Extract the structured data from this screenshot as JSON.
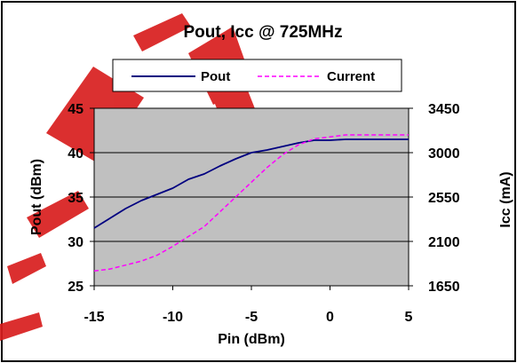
{
  "chart_data": {
    "type": "line",
    "title": "Pout, Icc @ 725MHz",
    "xlabel": "Pin (dBm)",
    "ylabel_left": "Pout (dBm)",
    "ylabel_right": "Icc (mA)",
    "xlim": [
      -15,
      5
    ],
    "ylim_left": [
      25,
      45
    ],
    "ylim_right": [
      1650,
      3450
    ],
    "x_ticks": [
      "-15",
      "-10",
      "-5",
      "0",
      "5"
    ],
    "y_left_ticks": [
      "25",
      "30",
      "35",
      "40",
      "45"
    ],
    "y_right_ticks": [
      "1650",
      "2100",
      "2550",
      "3000",
      "3450"
    ],
    "grid": true,
    "legend_position": "top",
    "plot_background": "#c0c0c0",
    "watermark_color": "#d81e1e",
    "series": [
      {
        "name": "Pout",
        "axis": "left",
        "color": "#000080",
        "style": "solid",
        "x": [
          -15,
          -14,
          -13,
          -12,
          -11,
          -10,
          -9,
          -8,
          -7,
          -6,
          -5,
          -4,
          -3,
          -2,
          -1,
          0,
          1,
          2,
          3,
          4,
          5
        ],
        "values": [
          31.5,
          32.6,
          33.7,
          34.6,
          35.3,
          36.0,
          37.0,
          37.6,
          38.5,
          39.3,
          40.0,
          40.3,
          40.7,
          41.1,
          41.4,
          41.4,
          41.5,
          41.5,
          41.5,
          41.5,
          41.5
        ]
      },
      {
        "name": "Current",
        "axis": "right",
        "color": "#ff00ff",
        "style": "dashed",
        "x": [
          -15,
          -14,
          -13,
          -12,
          -11,
          -10,
          -9,
          -8,
          -7,
          -6,
          -5,
          -4,
          -3,
          -2,
          -1,
          0,
          1,
          2,
          3,
          4,
          5
        ],
        "values": [
          1800,
          1820,
          1860,
          1900,
          1960,
          2050,
          2150,
          2250,
          2400,
          2550,
          2700,
          2850,
          2980,
          3080,
          3140,
          3160,
          3180,
          3180,
          3180,
          3180,
          3180
        ]
      }
    ]
  }
}
